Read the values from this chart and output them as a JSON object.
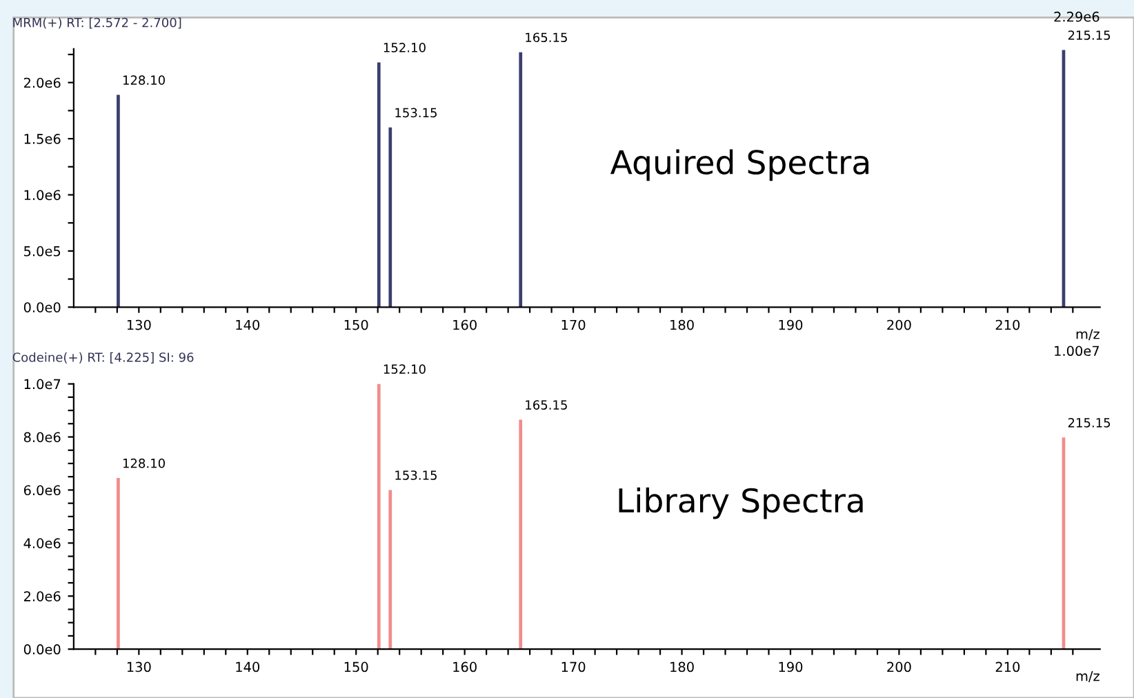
{
  "chart_data": [
    {
      "type": "bar",
      "title": "MRM(+) RT: [2.572 - 2.700]",
      "xlabel": "m/z",
      "x": [
        128.1,
        152.1,
        153.15,
        165.15,
        215.15
      ],
      "values": [
        1890000.0,
        2180000.0,
        1600000.0,
        2270000.0,
        2290000.0
      ],
      "color": "#3a3f6e",
      "xlim": [
        124,
        218.5
      ],
      "ylim": [
        0,
        2300000.0
      ],
      "xticks": [
        {
          "value": 126,
          "label": null
        },
        {
          "value": 128,
          "label": null
        },
        130,
        {
          "value": 132,
          "label": null
        },
        {
          "value": 134,
          "label": null
        },
        {
          "value": 136,
          "label": null
        },
        {
          "value": 138,
          "label": null
        },
        140,
        {
          "value": 142,
          "label": null
        },
        {
          "value": 144,
          "label": null
        },
        {
          "value": 146,
          "label": null
        },
        {
          "value": 148,
          "label": null
        },
        150,
        {
          "value": 152,
          "label": null
        },
        {
          "value": 154,
          "label": null
        },
        {
          "value": 156,
          "label": null
        },
        {
          "value": 158,
          "label": null
        },
        160,
        {
          "value": 162,
          "label": null
        },
        {
          "value": 164,
          "label": null
        },
        {
          "value": 166,
          "label": null
        },
        {
          "value": 168,
          "label": null
        },
        170,
        {
          "value": 172,
          "label": null
        },
        {
          "value": 174,
          "label": null
        },
        {
          "value": 176,
          "label": null
        },
        {
          "value": 178,
          "label": null
        },
        180,
        {
          "value": 182,
          "label": null
        },
        {
          "value": 184,
          "label": null
        },
        {
          "value": 186,
          "label": null
        },
        {
          "value": 188,
          "label": null
        },
        190,
        {
          "value": 192,
          "label": null
        },
        {
          "value": 194,
          "label": null
        },
        {
          "value": 196,
          "label": null
        },
        {
          "value": 198,
          "label": null
        },
        200,
        {
          "value": 202,
          "label": null
        },
        {
          "value": 204,
          "label": null
        },
        {
          "value": 206,
          "label": null
        },
        {
          "value": 208,
          "label": null
        },
        210,
        {
          "value": 212,
          "label": null
        },
        {
          "value": 214,
          "label": null
        },
        {
          "value": 216,
          "label": null
        }
      ],
      "yticks": [
        {
          "value": 0,
          "label": "0.0e0"
        },
        {
          "value": 250000,
          "label": null
        },
        {
          "value": 500000,
          "label": "5.0e5"
        },
        {
          "value": 750000,
          "label": null
        },
        {
          "value": 1000000,
          "label": "1.0e6"
        },
        {
          "value": 1250000,
          "label": null
        },
        {
          "value": 1500000,
          "label": "1.5e6"
        },
        {
          "value": 1750000,
          "label": null
        },
        {
          "value": 2000000,
          "label": "2.0e6"
        },
        {
          "value": 2250000,
          "label": null
        }
      ],
      "grid": false,
      "annotations": [
        "Aquired Spectra",
        "2.29e6",
        {
          "text": "128.10",
          "x": 128.1,
          "y": 1890000.0
        },
        {
          "text": "152.10",
          "x": 152.1,
          "y": 2180000.0
        },
        {
          "text": "153.15",
          "x": 153.15,
          "y": 1600000.0
        },
        {
          "text": "165.15",
          "x": 165.15,
          "y": 2270000.0
        },
        {
          "text": "215.15",
          "x": 215.15,
          "y": 2290000.0
        }
      ]
    },
    {
      "type": "bar",
      "title": "Codeine(+) RT: [4.225] SI: 96",
      "xlabel": "m/z",
      "x": [
        128.1,
        152.1,
        153.15,
        165.15,
        215.15
      ],
      "values": [
        6450000.0,
        10000000.0,
        6000000.0,
        8650000.0,
        7980000.0
      ],
      "color": "#f28c8c",
      "xlim": [
        124,
        218.5
      ],
      "ylim": [
        0,
        10000000.0
      ],
      "xticks": [
        {
          "value": 126,
          "label": null
        },
        {
          "value": 128,
          "label": null
        },
        130,
        {
          "value": 132,
          "label": null
        },
        {
          "value": 134,
          "label": null
        },
        {
          "value": 136,
          "label": null
        },
        {
          "value": 138,
          "label": null
        },
        140,
        {
          "value": 142,
          "label": null
        },
        {
          "value": 144,
          "label": null
        },
        {
          "value": 146,
          "label": null
        },
        {
          "value": 148,
          "label": null
        },
        150,
        {
          "value": 152,
          "label": null
        },
        {
          "value": 154,
          "label": null
        },
        {
          "value": 156,
          "label": null
        },
        {
          "value": 158,
          "label": null
        },
        160,
        {
          "value": 162,
          "label": null
        },
        {
          "value": 164,
          "label": null
        },
        {
          "value": 166,
          "label": null
        },
        {
          "value": 168,
          "label": null
        },
        170,
        {
          "value": 172,
          "label": null
        },
        {
          "value": 174,
          "label": null
        },
        {
          "value": 176,
          "label": null
        },
        {
          "value": 178,
          "label": null
        },
        180,
        {
          "value": 182,
          "label": null
        },
        {
          "value": 184,
          "label": null
        },
        {
          "value": 186,
          "label": null
        },
        {
          "value": 188,
          "label": null
        },
        190,
        {
          "value": 192,
          "label": null
        },
        {
          "value": 194,
          "label": null
        },
        {
          "value": 196,
          "label": null
        },
        {
          "value": 198,
          "label": null
        },
        200,
        {
          "value": 202,
          "label": null
        },
        {
          "value": 204,
          "label": null
        },
        {
          "value": 206,
          "label": null
        },
        {
          "value": 208,
          "label": null
        },
        210,
        {
          "value": 212,
          "label": null
        },
        {
          "value": 214,
          "label": null
        },
        {
          "value": 216,
          "label": null
        }
      ],
      "yticks": [
        {
          "value": 0,
          "label": "0.0e0"
        },
        {
          "value": 500000,
          "label": null
        },
        {
          "value": 1000000,
          "label": null
        },
        {
          "value": 1500000,
          "label": null
        },
        {
          "value": 2000000,
          "label": "2.0e6"
        },
        {
          "value": 2500000,
          "label": null
        },
        {
          "value": 3000000,
          "label": null
        },
        {
          "value": 3500000,
          "label": null
        },
        {
          "value": 4000000,
          "label": "4.0e6"
        },
        {
          "value": 4500000,
          "label": null
        },
        {
          "value": 5000000,
          "label": null
        },
        {
          "value": 5500000,
          "label": null
        },
        {
          "value": 6000000,
          "label": "6.0e6"
        },
        {
          "value": 6500000,
          "label": null
        },
        {
          "value": 7000000,
          "label": null
        },
        {
          "value": 7500000,
          "label": null
        },
        {
          "value": 8000000,
          "label": "8.0e6"
        },
        {
          "value": 8500000,
          "label": null
        },
        {
          "value": 9000000,
          "label": null
        },
        {
          "value": 9500000,
          "label": null
        },
        {
          "value": 10000000,
          "label": "1.0e7"
        }
      ],
      "grid": false,
      "annotations": [
        "Library Spectra",
        "1.00e7",
        {
          "text": "128.10",
          "x": 128.1,
          "y": 6450000.0
        },
        {
          "text": "152.10",
          "x": 152.1,
          "y": 10000000.0
        },
        {
          "text": "153.15",
          "x": 153.15,
          "y": 6000000.0
        },
        {
          "text": "165.15",
          "x": 165.15,
          "y": 8650000.0
        },
        {
          "text": "215.15",
          "x": 215.15,
          "y": 7980000.0
        }
      ]
    }
  ]
}
